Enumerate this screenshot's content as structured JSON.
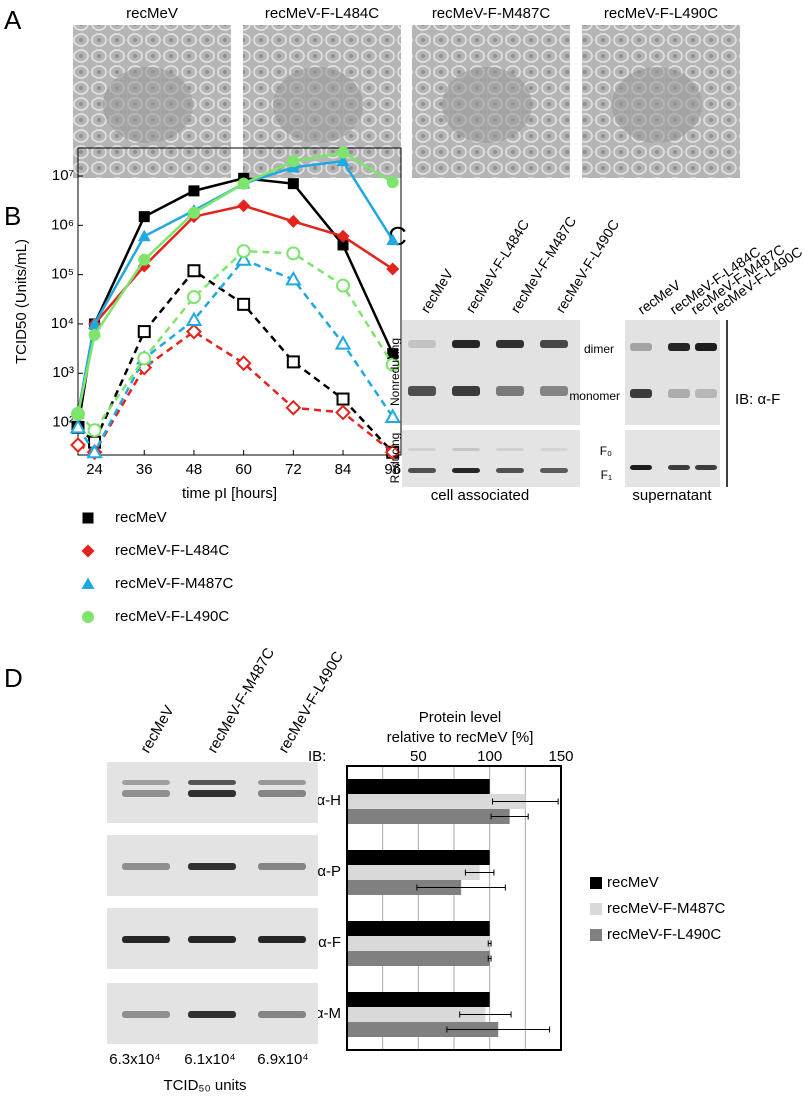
{
  "panel_labels": [
    "A",
    "B",
    "C",
    "D"
  ],
  "panel_a": {
    "titles": [
      "recMeV",
      "recMeV-F-L484C",
      "recMeV-F-M487C",
      "recMeV-F-L490C"
    ]
  },
  "chart_data": [
    {
      "type": "line",
      "y_label": "TCID50 (Units/mL)",
      "x_label": "time pI [hours]",
      "x": [
        20,
        24,
        36,
        48,
        60,
        72,
        84,
        96
      ],
      "xlim": [
        20,
        98
      ],
      "xticks": [
        24,
        36,
        48,
        60,
        72,
        84,
        96
      ],
      "log_y": true,
      "ylim": [
        22,
        37000000
      ],
      "yticks": [
        {
          "value": 100,
          "label": "10²"
        },
        {
          "value": 1000,
          "label": "10³"
        },
        {
          "value": 10000,
          "label": "10⁴"
        },
        {
          "value": 100000,
          "label": "10⁵"
        },
        {
          "value": 1000000,
          "label": "10⁶"
        },
        {
          "value": 10000000,
          "label": "10⁷"
        }
      ],
      "series": [
        {
          "name": "recMeV",
          "color": "#000000",
          "marker": "square",
          "values": [
            80,
            10000,
            1500000,
            5000000,
            9000000,
            7000000,
            400000,
            2500
          ],
          "open_values": [
            80,
            40,
            7000,
            120000,
            25000,
            1700,
            300,
            25
          ]
        },
        {
          "name": "recMeV-F-L484C",
          "color": "#e3231c",
          "marker": "diamond",
          "values": [
            150,
            10000,
            150000,
            1500000,
            2500000,
            1200000,
            600000,
            130000
          ],
          "open_values": [
            35,
            25,
            1300,
            7000,
            1600,
            200,
            160,
            25
          ]
        },
        {
          "name": "recMeV-F-M487C",
          "color": "#1fa9e0",
          "marker": "triangle",
          "values": [
            150,
            10000,
            600000,
            2000000,
            7000000,
            15000000,
            20000000,
            500000
          ],
          "open_values": [
            80,
            25,
            2000,
            12000,
            200000,
            80000,
            4000,
            130
          ]
        },
        {
          "name": "recMeV-F-L490C",
          "color": "#7ee56c",
          "marker": "circle",
          "values": [
            150,
            6000,
            200000,
            1800000,
            7000000,
            20000000,
            30000000,
            7500000
          ],
          "open_values": [
            150,
            70,
            2000,
            35000,
            300000,
            270000,
            60000,
            1500
          ]
        }
      ]
    },
    {
      "type": "hbar",
      "title": "Protein level",
      "subtitle": "relative to recMeV [%]",
      "categories": [
        "α-H",
        "α-P",
        "α-F",
        "α-M"
      ],
      "xlim": [
        0,
        150
      ],
      "xticks": [
        50,
        100,
        150
      ],
      "minor_xticks": [
        25,
        75,
        125
      ],
      "grid": true,
      "legend": "right",
      "series": [
        {
          "name": "recMeV",
          "color": "#000000",
          "values": [
            100,
            100,
            100,
            100
          ]
        },
        {
          "name": "recMeV-F-M487C",
          "color": "#d9d9d9",
          "values": [
            125,
            93,
            100,
            97
          ],
          "errors": [
            23,
            10,
            1,
            18
          ]
        },
        {
          "name": "recMeV-F-L490C",
          "color": "#808080",
          "values": [
            114,
            80,
            100,
            106
          ],
          "errors": [
            13,
            31,
            1,
            36
          ]
        }
      ]
    }
  ],
  "panel_c": {
    "cell_lanes": [
      "recMeV",
      "recMeV-F-L484C",
      "recMeV-F-M487C",
      "recMeV-F-L490C"
    ],
    "supernatant_lanes": [
      "recMeV",
      "recMeV-F-L484C",
      "recMeV-F-M487C",
      "recMeV-F-L490C"
    ],
    "nonreducing": "Nonreducing",
    "reducing": "Reducing",
    "dimer": "dimer",
    "monomer": "monomer",
    "f0": "F₀",
    "f1": "F₁",
    "ib": "IB: α-F",
    "cell_caption": "cell associated",
    "supernatant_caption": "supernatant"
  },
  "panel_d": {
    "lanes": [
      "recMeV",
      "recMeV-F-M487C",
      "recMeV-F-L490C"
    ],
    "titers": [
      "6.3x10⁴",
      "6.1x10⁴",
      "6.9x10⁴"
    ],
    "titer_caption": "TCID₅₀ units",
    "ib": "IB:"
  }
}
